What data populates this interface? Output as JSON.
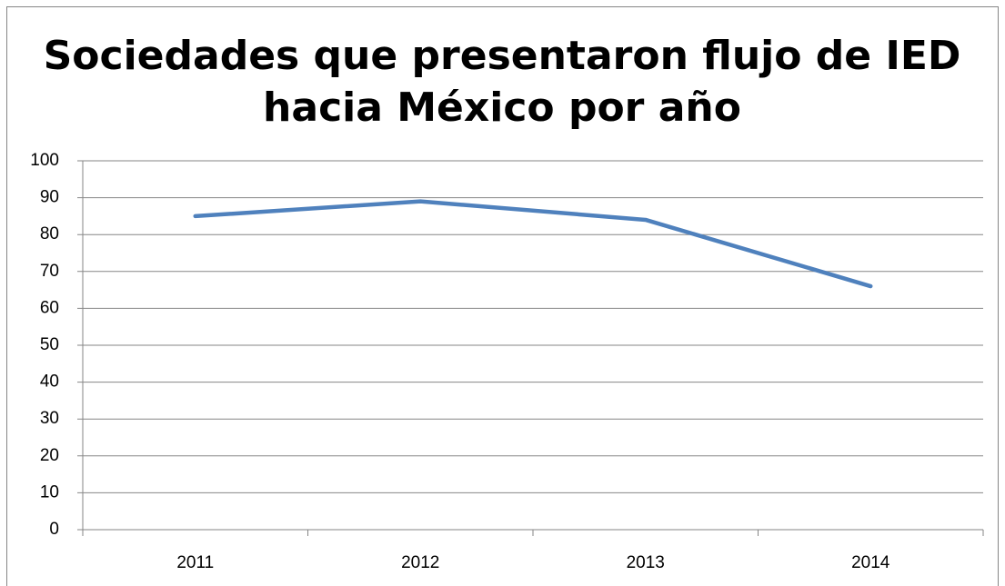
{
  "chart_data": {
    "type": "line",
    "title": [
      "Sociedades que presentaron flujo de IED",
      "hacia México por año"
    ],
    "categories": [
      "2011",
      "2012",
      "2013",
      "2014"
    ],
    "values": [
      85,
      89,
      84,
      66
    ],
    "color": "#4f81bd",
    "ylim": [
      0,
      100
    ],
    "yticks": [
      0,
      10,
      20,
      30,
      40,
      50,
      60,
      70,
      80,
      90,
      100
    ],
    "grid": true
  }
}
